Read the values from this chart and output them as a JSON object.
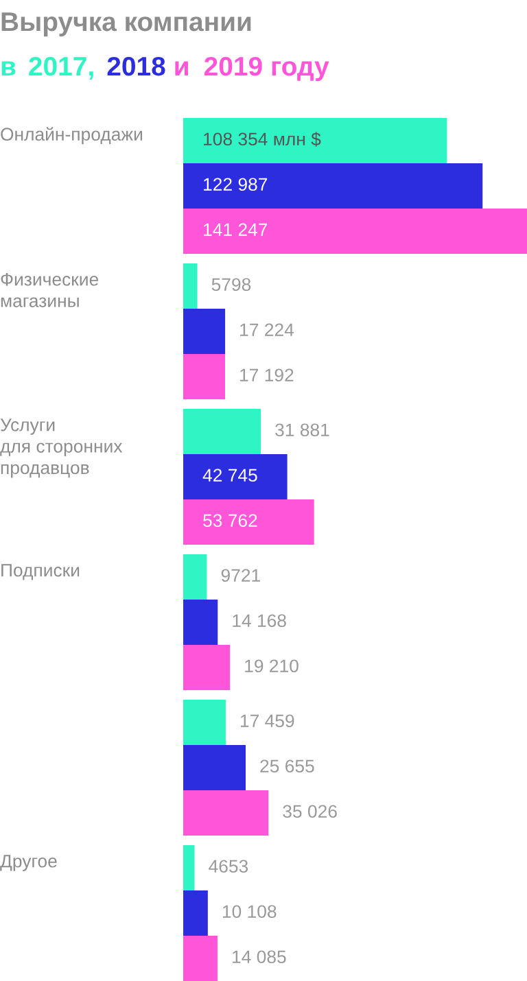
{
  "chart_data": {
    "type": "bar",
    "orientation": "horizontal",
    "title": "Выручка компании",
    "subtitle": "в 2017, 2018 и 2019 году",
    "categories": [
      "Онлайн-продажи",
      "Физические\nмагазины",
      "Услуги\nдля сторонних\nпродавцов",
      "Подписки",
      null,
      "Другое"
    ],
    "series": [
      {
        "color": "#2ff5c4",
        "values": [
          108354,
          5798,
          31881,
          9721,
          17459,
          4653
        ],
        "value_labels": [
          "108 354 млн $",
          "5798",
          "31 881",
          "9721",
          "17 459",
          "4653"
        ]
      },
      {
        "color": "#2d2de0",
        "values": [
          122987,
          17224,
          42745,
          14168,
          25655,
          10108
        ],
        "value_labels": [
          "122 987",
          "17 224",
          "42 745",
          "14 168",
          "25 655",
          "10 108"
        ]
      },
      {
        "color": "#ff55d9",
        "values": [
          141247,
          17192,
          53762,
          19210,
          35026,
          14085
        ],
        "value_labels": [
          "141 247",
          "17 192",
          "53 762",
          "19 210",
          "35 026",
          "14 085"
        ]
      }
    ],
    "legend": false
  }
}
